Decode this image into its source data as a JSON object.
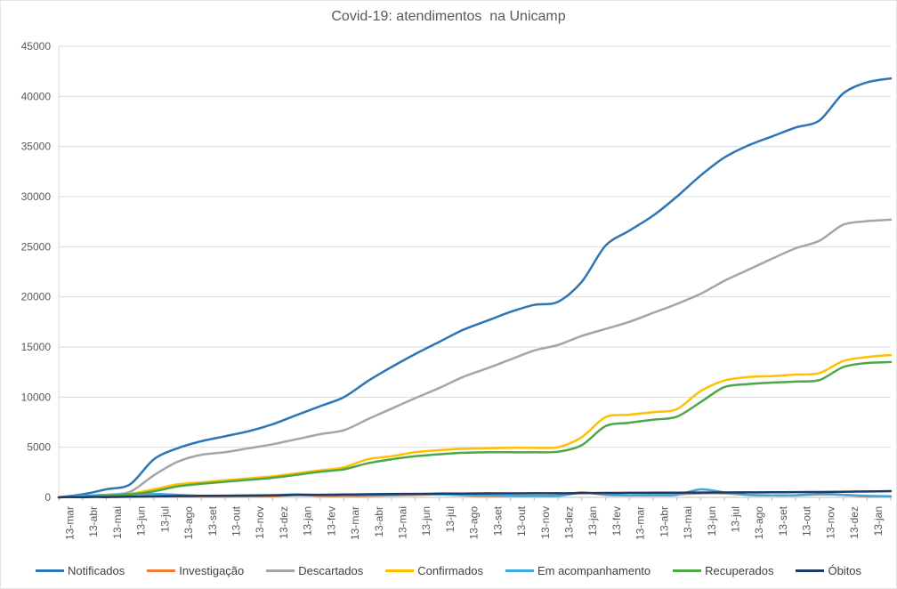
{
  "title": "Covid-19: atendimentos  na Unicamp",
  "y_axis": {
    "labels": [
      "0",
      "5000",
      "10000",
      "15000",
      "20000",
      "25000",
      "30000",
      "35000",
      "40000",
      "45000"
    ],
    "min": 0,
    "max": 45000,
    "step": 5000
  },
  "x_axis": {
    "labels": [
      "13-mar",
      "13-abr",
      "13-mai",
      "13-jun",
      "13-jul",
      "13-ago",
      "13-set",
      "13-out",
      "13-nov",
      "13-dez",
      "13-jan",
      "13-fev",
      "13-mar",
      "13-abr",
      "13-mai",
      "13-jun",
      "13-jul",
      "13-ago",
      "13-set",
      "13-out",
      "13-nov",
      "13-dez",
      "13-jan",
      "13-fev",
      "13-mar",
      "13-abr",
      "13-mai",
      "13-jun",
      "13-jul",
      "13-ago",
      "13-set",
      "13-out",
      "13-nov",
      "13-dez",
      "13-jan"
    ]
  },
  "style_colors": {
    "grid": "#d9d9d9",
    "axis": "#bfbfbf",
    "tick": "#bfbfbf",
    "axis_text": "#595959",
    "title_text": "#595959",
    "legend_text": "#404040"
  },
  "chart_data": {
    "type": "line",
    "title": "Covid-19: atendimentos  na Unicamp",
    "xlabel": "",
    "ylabel": "",
    "ylim": [
      0,
      45000
    ],
    "grid": "horizontal",
    "legend_position": "bottom",
    "x_tick_labels": [
      "13-mar",
      "13-abr",
      "13-mai",
      "13-jun",
      "13-jul",
      "13-ago",
      "13-set",
      "13-out",
      "13-nov",
      "13-dez",
      "13-jan",
      "13-fev",
      "13-mar",
      "13-abr",
      "13-mai",
      "13-jun",
      "13-jul",
      "13-ago",
      "13-set",
      "13-out",
      "13-nov",
      "13-dez",
      "13-jan",
      "13-fev",
      "13-mar",
      "13-abr",
      "13-mai",
      "13-jun",
      "13-jul",
      "13-ago",
      "13-set",
      "13-out",
      "13-nov",
      "13-dez",
      "13-jan"
    ],
    "x_note": "monthly ticks, series continues about half a month past the last tick (36th value = line end)",
    "series": [
      {
        "name": "Notificados",
        "color": "#2e75b6",
        "values": [
          0,
          300,
          800,
          1300,
          3800,
          4900,
          5600,
          6100,
          6600,
          7300,
          8200,
          9100,
          10000,
          11600,
          13000,
          14300,
          15500,
          16700,
          17600,
          18500,
          19200,
          19500,
          21500,
          25100,
          26600,
          28100,
          30000,
          32100,
          33900,
          35100,
          36000,
          36900,
          37600,
          40300,
          41400,
          41800
        ]
      },
      {
        "name": "Investigação",
        "color": "#ed7d31",
        "values": [
          0,
          100,
          150,
          100,
          100,
          100,
          80,
          80,
          100,
          120,
          250,
          150,
          150,
          150,
          200,
          250,
          300,
          200,
          150,
          150,
          150,
          200,
          500,
          250,
          200,
          250,
          300,
          400,
          400,
          250,
          200,
          200,
          300,
          250,
          100,
          100
        ]
      },
      {
        "name": "Descartados",
        "color": "#a5a5a5",
        "values": [
          0,
          100,
          250,
          550,
          2200,
          3550,
          4250,
          4500,
          4900,
          5300,
          5800,
          6300,
          6700,
          7800,
          8850,
          9900,
          10900,
          12000,
          12850,
          13750,
          14650,
          15200,
          16100,
          16800,
          17500,
          18400,
          19300,
          20300,
          21600,
          22700,
          23800,
          24850,
          25600,
          27200,
          27550,
          27700
        ]
      },
      {
        "name": "Confirmados",
        "color": "#ffc000",
        "values": [
          0,
          50,
          200,
          350,
          800,
          1300,
          1500,
          1700,
          1900,
          2100,
          2400,
          2700,
          3000,
          3800,
          4100,
          4500,
          4700,
          4850,
          4900,
          4950,
          4950,
          5000,
          6000,
          8000,
          8250,
          8500,
          8800,
          10600,
          11650,
          12000,
          12100,
          12250,
          12400,
          13600,
          14000,
          14200
        ]
      },
      {
        "name": "Em acompanhamento",
        "color": "#3fa7dc",
        "values": [
          0,
          150,
          250,
          300,
          350,
          250,
          150,
          150,
          150,
          200,
          300,
          200,
          200,
          250,
          300,
          350,
          300,
          250,
          200,
          150,
          150,
          150,
          450,
          300,
          200,
          200,
          250,
          800,
          500,
          250,
          200,
          200,
          350,
          250,
          150,
          100
        ]
      },
      {
        "name": "Recuperados",
        "color": "#4da647",
        "values": [
          0,
          20,
          150,
          300,
          600,
          1100,
          1350,
          1550,
          1750,
          1950,
          2250,
          2550,
          2800,
          3400,
          3800,
          4100,
          4300,
          4450,
          4500,
          4500,
          4500,
          4550,
          5200,
          7100,
          7450,
          7750,
          8050,
          9500,
          11000,
          11300,
          11450,
          11550,
          11700,
          13000,
          13400,
          13500
        ]
      },
      {
        "name": "Óbitos",
        "color": "#1f3864",
        "values": [
          0,
          10,
          30,
          60,
          100,
          130,
          150,
          170,
          190,
          210,
          240,
          260,
          280,
          310,
          330,
          350,
          370,
          385,
          395,
          400,
          405,
          410,
          420,
          440,
          450,
          460,
          470,
          480,
          490,
          500,
          510,
          520,
          535,
          560,
          590,
          620
        ]
      }
    ]
  }
}
